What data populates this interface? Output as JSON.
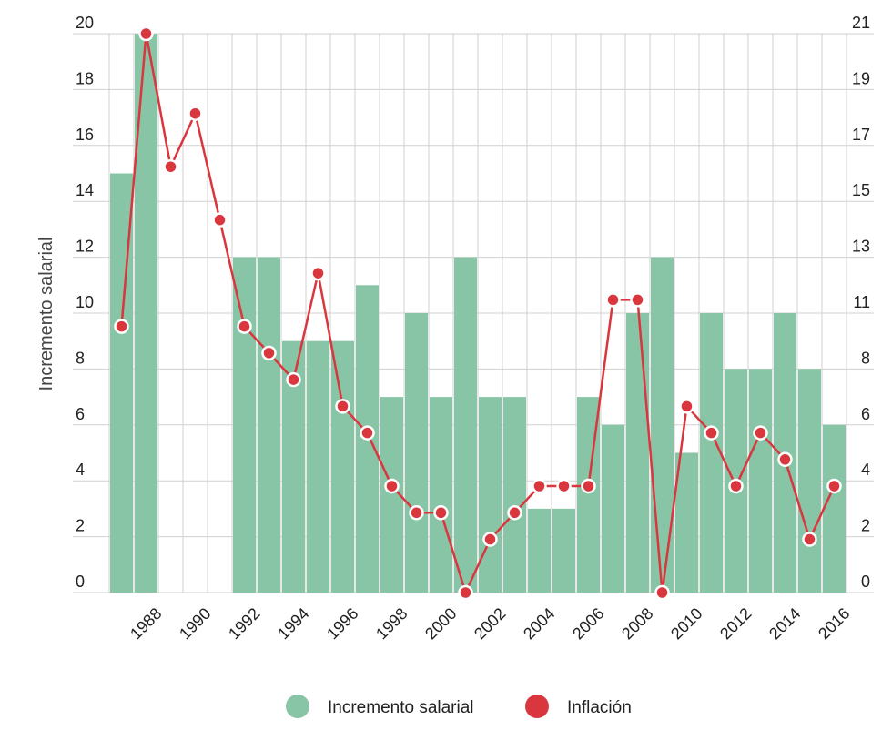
{
  "chart_data": {
    "type": "bar",
    "categories": [
      "1987",
      "1988",
      "1989",
      "1990",
      "1991",
      "1992",
      "1993",
      "1994",
      "1995",
      "1996",
      "1997",
      "1998",
      "1999",
      "2000",
      "2001",
      "2002",
      "2003",
      "2004",
      "2005",
      "2006",
      "2007",
      "2008",
      "2009",
      "2010",
      "2011",
      "2012",
      "2013",
      "2014",
      "2015",
      "2016"
    ],
    "x_tick_labels": [
      "1988",
      "1990",
      "1992",
      "1994",
      "1996",
      "1998",
      "2000",
      "2002",
      "2004",
      "2006",
      "2008",
      "2010",
      "2012",
      "2014",
      "2016"
    ],
    "ylabel": "Incremento salarial",
    "ylim": [
      0,
      20
    ],
    "y_ticks": [
      "0",
      "2",
      "4",
      "6",
      "8",
      "10",
      "12",
      "14",
      "16",
      "18",
      "20"
    ],
    "y2lim": [
      0,
      21
    ],
    "y2_ticks": [
      "0",
      "2",
      "4",
      "6",
      "8",
      "11",
      "13",
      "15",
      "17",
      "19",
      "21"
    ],
    "grid": true,
    "legend_position": "bottom",
    "series": [
      {
        "name": "Incremento salarial",
        "type": "bar",
        "axis": "left",
        "color": "#88c4a6",
        "values": [
          15,
          20,
          null,
          null,
          null,
          12,
          12,
          9,
          9,
          9,
          11,
          7,
          10,
          7,
          12,
          7,
          7,
          3,
          3,
          7,
          6,
          10,
          12,
          5,
          10,
          8,
          8,
          10,
          8,
          6
        ]
      },
      {
        "name": "Inflación",
        "type": "line",
        "axis": "right",
        "color": "#d9363e",
        "values": [
          10,
          21,
          16,
          18,
          14,
          10,
          9,
          8,
          12,
          7,
          6,
          4,
          3,
          3,
          0,
          2,
          3,
          4,
          4,
          4,
          11,
          11,
          0,
          7,
          6,
          4,
          6,
          5,
          2,
          4
        ]
      }
    ]
  }
}
